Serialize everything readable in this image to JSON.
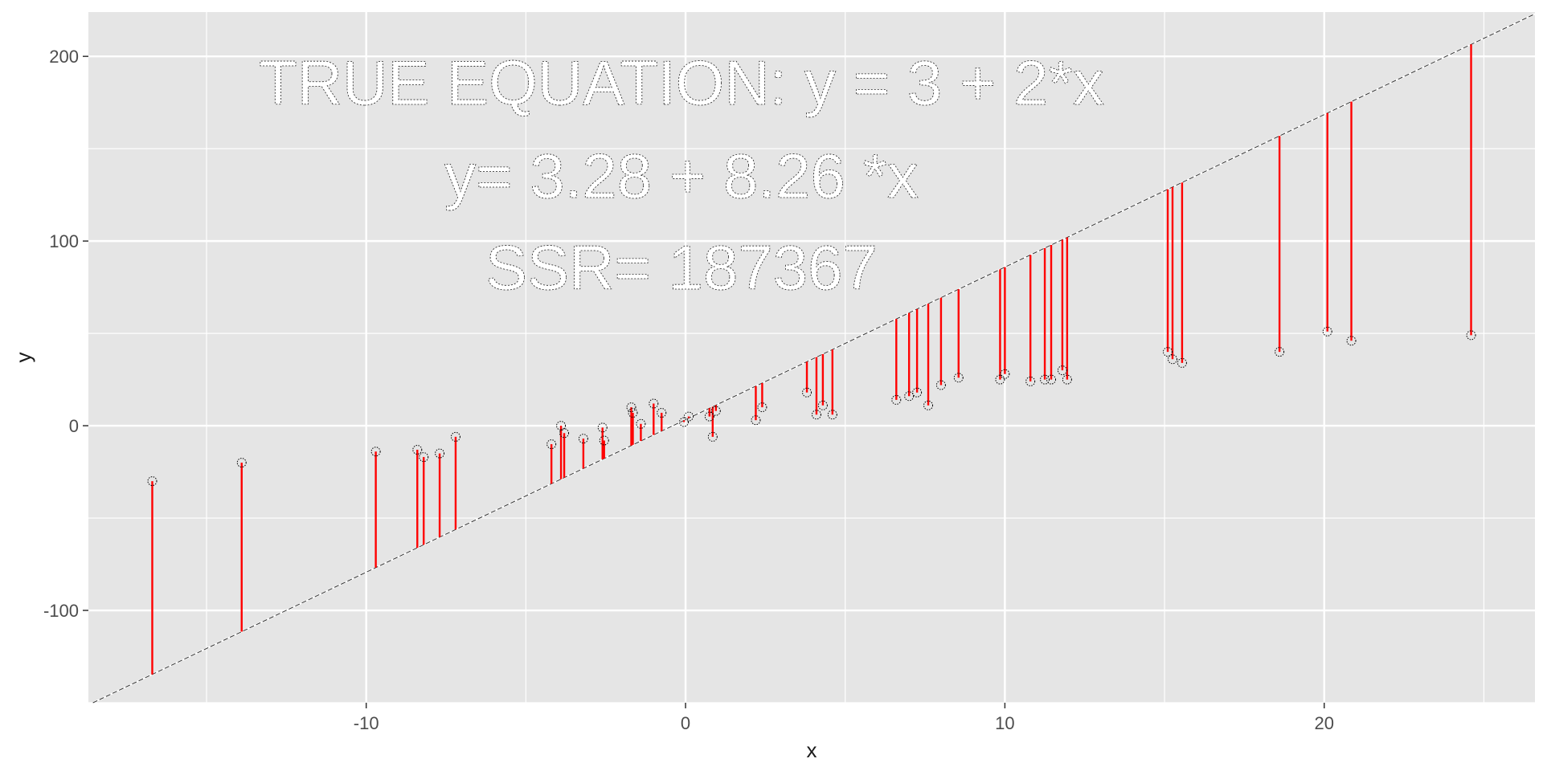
{
  "chart_data": {
    "type": "scatter",
    "title": "",
    "xlabel": "x",
    "ylabel": "y",
    "xlim": [
      -18.7,
      26.6
    ],
    "ylim": [
      -150,
      224
    ],
    "x_ticks": [
      -10,
      0,
      10,
      20
    ],
    "y_ticks": [
      -100,
      0,
      100,
      200
    ],
    "grid": true,
    "panel_background": "#e5e5e5",
    "grid_color": "#ffffff",
    "residual_color": "#ff0000",
    "fit_line_color": "#333333",
    "annotations": [
      "TRUE EQUATION: y = 3 + 2*x",
      "y= 3.28 + 8.26 *x",
      "SSR= 187367"
    ],
    "fit_line": {
      "intercept": 3.28,
      "slope": 8.26
    },
    "points": [
      {
        "x": -16.7,
        "y": -30
      },
      {
        "x": -13.9,
        "y": -20
      },
      {
        "x": -9.7,
        "y": -14
      },
      {
        "x": -8.4,
        "y": -13
      },
      {
        "x": -8.2,
        "y": -17
      },
      {
        "x": -7.7,
        "y": -15
      },
      {
        "x": -7.2,
        "y": -6
      },
      {
        "x": -4.2,
        "y": -10
      },
      {
        "x": -3.9,
        "y": 0
      },
      {
        "x": -3.8,
        "y": -4
      },
      {
        "x": -3.2,
        "y": -7
      },
      {
        "x": -2.6,
        "y": -1
      },
      {
        "x": -2.55,
        "y": -8
      },
      {
        "x": -1.7,
        "y": 10
      },
      {
        "x": -1.65,
        "y": 7
      },
      {
        "x": -1.4,
        "y": 1
      },
      {
        "x": -1.0,
        "y": 12
      },
      {
        "x": -0.75,
        "y": 7
      },
      {
        "x": -0.05,
        "y": 2
      },
      {
        "x": 0.1,
        "y": 5
      },
      {
        "x": 0.75,
        "y": 5
      },
      {
        "x": 0.85,
        "y": -6
      },
      {
        "x": 0.95,
        "y": 8
      },
      {
        "x": 2.2,
        "y": 3
      },
      {
        "x": 2.4,
        "y": 10
      },
      {
        "x": 3.8,
        "y": 18
      },
      {
        "x": 4.1,
        "y": 6
      },
      {
        "x": 4.3,
        "y": 11
      },
      {
        "x": 4.6,
        "y": 6
      },
      {
        "x": 6.6,
        "y": 14
      },
      {
        "x": 7.0,
        "y": 16
      },
      {
        "x": 7.25,
        "y": 18
      },
      {
        "x": 7.6,
        "y": 11
      },
      {
        "x": 8.0,
        "y": 22
      },
      {
        "x": 8.55,
        "y": 26
      },
      {
        "x": 9.85,
        "y": 25
      },
      {
        "x": 10.0,
        "y": 28
      },
      {
        "x": 10.8,
        "y": 24
      },
      {
        "x": 11.25,
        "y": 25
      },
      {
        "x": 11.45,
        "y": 25
      },
      {
        "x": 11.8,
        "y": 30
      },
      {
        "x": 11.95,
        "y": 25
      },
      {
        "x": 15.1,
        "y": 40
      },
      {
        "x": 15.25,
        "y": 36
      },
      {
        "x": 15.55,
        "y": 34
      },
      {
        "x": 18.6,
        "y": 40
      },
      {
        "x": 20.1,
        "y": 51
      },
      {
        "x": 20.85,
        "y": 46
      },
      {
        "x": 24.6,
        "y": 49
      }
    ]
  }
}
